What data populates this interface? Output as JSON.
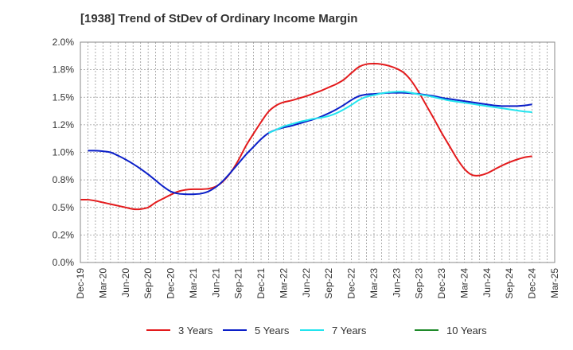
{
  "chart_data": {
    "type": "line",
    "title": "[1938]  Trend of StDev of Ordinary Income Margin",
    "xlabel": "",
    "ylabel": "",
    "x_ticks": [
      "Dec-19",
      "Mar-20",
      "Jun-20",
      "Sep-20",
      "Dec-20",
      "Mar-21",
      "Jun-21",
      "Sep-21",
      "Dec-21",
      "Mar-22",
      "Jun-22",
      "Sep-22",
      "Dec-22",
      "Mar-23",
      "Jun-23",
      "Sep-23",
      "Dec-23",
      "Mar-24",
      "Jun-24",
      "Sep-24",
      "Dec-24",
      "Mar-25"
    ],
    "y_ticks": [
      "0.0%",
      "0.2%",
      "0.5%",
      "0.8%",
      "1.0%",
      "1.2%",
      "1.5%",
      "1.8%",
      "2.0%"
    ],
    "y_tick_values": [
      0.0,
      0.25,
      0.5,
      0.75,
      1.0,
      1.25,
      1.5,
      1.75,
      2.0
    ],
    "ylim": [
      0.0,
      2.0
    ],
    "grid": true,
    "legend_position": "bottom",
    "series": [
      {
        "name": "3 Years",
        "color": "#e31a1c",
        "points": [
          [
            "Dec-19",
            0.57
          ],
          [
            "Jan-20",
            0.57
          ],
          [
            "Feb-20",
            0.56
          ],
          [
            "Mar-20",
            0.545
          ],
          [
            "Apr-20",
            0.53
          ],
          [
            "May-20",
            0.515
          ],
          [
            "Jun-20",
            0.5
          ],
          [
            "Jul-20",
            0.485
          ],
          [
            "Aug-20",
            0.485
          ],
          [
            "Sep-20",
            0.5
          ],
          [
            "Oct-20",
            0.545
          ],
          [
            "Nov-20",
            0.58
          ],
          [
            "Dec-20",
            0.615
          ],
          [
            "Jan-21",
            0.645
          ],
          [
            "Feb-21",
            0.66
          ],
          [
            "Mar-21",
            0.665
          ],
          [
            "Apr-21",
            0.665
          ],
          [
            "May-21",
            0.67
          ],
          [
            "Jun-21",
            0.69
          ],
          [
            "Jul-21",
            0.74
          ],
          [
            "Aug-21",
            0.82
          ],
          [
            "Sep-21",
            0.93
          ],
          [
            "Oct-21",
            1.06
          ],
          [
            "Nov-21",
            1.17
          ],
          [
            "Dec-21",
            1.275
          ],
          [
            "Jan-22",
            1.37
          ],
          [
            "Feb-22",
            1.425
          ],
          [
            "Mar-22",
            1.455
          ],
          [
            "Apr-22",
            1.47
          ],
          [
            "May-22",
            1.49
          ],
          [
            "Jun-22",
            1.51
          ],
          [
            "Jul-22",
            1.535
          ],
          [
            "Aug-22",
            1.56
          ],
          [
            "Sep-22",
            1.59
          ],
          [
            "Oct-22",
            1.62
          ],
          [
            "Nov-22",
            1.66
          ],
          [
            "Dec-22",
            1.72
          ],
          [
            "Jan-23",
            1.775
          ],
          [
            "Feb-23",
            1.8
          ],
          [
            "Mar-23",
            1.805
          ],
          [
            "Apr-23",
            1.8
          ],
          [
            "May-23",
            1.785
          ],
          [
            "Jun-23",
            1.76
          ],
          [
            "Jul-23",
            1.72
          ],
          [
            "Aug-23",
            1.645
          ],
          [
            "Sep-23",
            1.54
          ],
          [
            "Oct-23",
            1.42
          ],
          [
            "Nov-23",
            1.3
          ],
          [
            "Dec-23",
            1.175
          ],
          [
            "Jan-24",
            1.06
          ],
          [
            "Feb-24",
            0.945
          ],
          [
            "Mar-24",
            0.85
          ],
          [
            "Apr-24",
            0.795
          ],
          [
            "May-24",
            0.79
          ],
          [
            "Jun-24",
            0.81
          ],
          [
            "Jul-24",
            0.845
          ],
          [
            "Aug-24",
            0.88
          ],
          [
            "Sep-24",
            0.91
          ],
          [
            "Oct-24",
            0.935
          ],
          [
            "Nov-24",
            0.955
          ],
          [
            "Dec-24",
            0.965
          ]
        ]
      },
      {
        "name": "5 Years",
        "color": "#0b1fc8",
        "points": [
          [
            "Jan-20",
            1.015
          ],
          [
            "Feb-20",
            1.015
          ],
          [
            "Mar-20",
            1.01
          ],
          [
            "Apr-20",
            1.0
          ],
          [
            "May-20",
            0.97
          ],
          [
            "Jun-20",
            0.935
          ],
          [
            "Jul-20",
            0.895
          ],
          [
            "Aug-20",
            0.85
          ],
          [
            "Sep-20",
            0.8
          ],
          [
            "Oct-20",
            0.745
          ],
          [
            "Nov-20",
            0.69
          ],
          [
            "Dec-20",
            0.645
          ],
          [
            "Jan-21",
            0.625
          ],
          [
            "Feb-21",
            0.62
          ],
          [
            "Mar-21",
            0.62
          ],
          [
            "Apr-21",
            0.625
          ],
          [
            "May-21",
            0.645
          ],
          [
            "Jun-21",
            0.685
          ],
          [
            "Jul-21",
            0.745
          ],
          [
            "Aug-21",
            0.82
          ],
          [
            "Sep-21",
            0.9
          ],
          [
            "Oct-21",
            0.98
          ],
          [
            "Nov-21",
            1.05
          ],
          [
            "Dec-21",
            1.12
          ],
          [
            "Jan-22",
            1.175
          ],
          [
            "Feb-22",
            1.205
          ],
          [
            "Mar-22",
            1.225
          ],
          [
            "Apr-22",
            1.24
          ],
          [
            "May-22",
            1.26
          ],
          [
            "Jun-22",
            1.28
          ],
          [
            "Jul-22",
            1.3
          ],
          [
            "Aug-22",
            1.325
          ],
          [
            "Sep-22",
            1.355
          ],
          [
            "Oct-22",
            1.39
          ],
          [
            "Nov-22",
            1.43
          ],
          [
            "Dec-22",
            1.475
          ],
          [
            "Jan-23",
            1.51
          ],
          [
            "Feb-23",
            1.525
          ],
          [
            "Mar-23",
            1.53
          ],
          [
            "Apr-23",
            1.535
          ],
          [
            "May-23",
            1.54
          ],
          [
            "Jun-23",
            1.54
          ],
          [
            "Jul-23",
            1.54
          ],
          [
            "Aug-23",
            1.535
          ],
          [
            "Sep-23",
            1.53
          ],
          [
            "Oct-23",
            1.52
          ],
          [
            "Nov-23",
            1.51
          ],
          [
            "Dec-23",
            1.495
          ],
          [
            "Jan-24",
            1.485
          ],
          [
            "Feb-24",
            1.475
          ],
          [
            "Mar-24",
            1.465
          ],
          [
            "Apr-24",
            1.455
          ],
          [
            "May-24",
            1.445
          ],
          [
            "Jun-24",
            1.435
          ],
          [
            "Jul-24",
            1.425
          ],
          [
            "Aug-24",
            1.42
          ],
          [
            "Sep-24",
            1.42
          ],
          [
            "Oct-24",
            1.42
          ],
          [
            "Nov-24",
            1.425
          ],
          [
            "Dec-24",
            1.435
          ]
        ]
      },
      {
        "name": "7 Years",
        "color": "#22e4ee",
        "points": [
          [
            "Jan-22",
            1.175
          ],
          [
            "Feb-22",
            1.205
          ],
          [
            "Mar-22",
            1.235
          ],
          [
            "Apr-22",
            1.255
          ],
          [
            "May-22",
            1.275
          ],
          [
            "Jun-22",
            1.29
          ],
          [
            "Jul-22",
            1.305
          ],
          [
            "Aug-22",
            1.315
          ],
          [
            "Sep-22",
            1.33
          ],
          [
            "Oct-22",
            1.355
          ],
          [
            "Nov-22",
            1.39
          ],
          [
            "Dec-22",
            1.43
          ],
          [
            "Jan-23",
            1.475
          ],
          [
            "Feb-23",
            1.505
          ],
          [
            "Mar-23",
            1.52
          ],
          [
            "Apr-23",
            1.535
          ],
          [
            "May-23",
            1.545
          ],
          [
            "Jun-23",
            1.55
          ],
          [
            "Jul-23",
            1.55
          ],
          [
            "Aug-23",
            1.54
          ],
          [
            "Sep-23",
            1.525
          ],
          [
            "Oct-23",
            1.515
          ],
          [
            "Nov-23",
            1.5
          ],
          [
            "Dec-23",
            1.485
          ],
          [
            "Jan-24",
            1.47
          ],
          [
            "Feb-24",
            1.46
          ],
          [
            "Mar-24",
            1.45
          ],
          [
            "Apr-24",
            1.44
          ],
          [
            "May-24",
            1.43
          ],
          [
            "Jun-24",
            1.42
          ],
          [
            "Jul-24",
            1.41
          ],
          [
            "Aug-24",
            1.4
          ],
          [
            "Sep-24",
            1.39
          ],
          [
            "Oct-24",
            1.38
          ],
          [
            "Nov-24",
            1.37
          ],
          [
            "Dec-24",
            1.365
          ]
        ]
      },
      {
        "name": "10 Years",
        "color": "#1f8a2a",
        "points": []
      }
    ]
  }
}
